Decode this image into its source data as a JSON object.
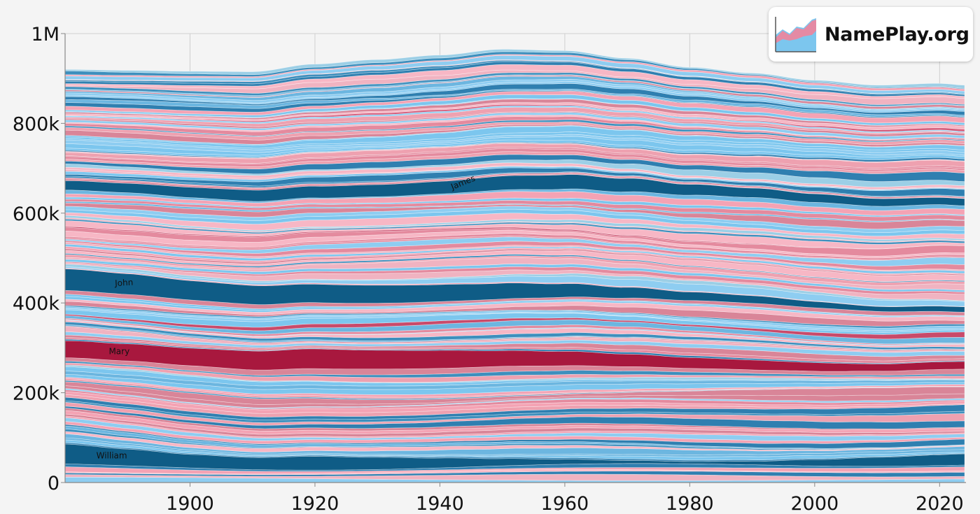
{
  "brand": {
    "name": "NamePlay.org",
    "logo_icon": "area-chart-logo-icon"
  },
  "colors": {
    "background": "#f4f4f4",
    "boy_palette": [
      "#7cc6ee",
      "#8ecdf1",
      "#9ccfe6",
      "#6cb6e0",
      "#3d8fbd",
      "#2f7fb0"
    ],
    "girl_palette": [
      "#f4a3b4",
      "#f0b3c1",
      "#eea1b0",
      "#f7b7c5",
      "#e48a9e",
      "#d98598"
    ],
    "highlight_boy": "#0f5c86",
    "highlight_girl": "#a8183e",
    "highlight_girl_mid": "#c94a6a"
  },
  "chart_data": {
    "type": "area",
    "subtype": "stacked streamgraph",
    "title": "",
    "xlabel": "",
    "ylabel": "",
    "xlim": [
      1880,
      2024
    ],
    "ylim": [
      0,
      1000000
    ],
    "x_ticks": [
      1900,
      1920,
      1940,
      1960,
      1980,
      2000,
      2020
    ],
    "x_tick_labels": [
      "1900",
      "1920",
      "1940",
      "1960",
      "1980",
      "2000",
      "2020"
    ],
    "y_ticks": [
      0,
      200000,
      400000,
      600000,
      800000,
      1000000
    ],
    "y_tick_labels": [
      "0",
      "200k",
      "400k",
      "600k",
      "800k",
      "1M"
    ],
    "grid": true,
    "years": [
      1880,
      1890,
      1900,
      1910,
      1920,
      1930,
      1940,
      1950,
      1960,
      1970,
      1980,
      1990,
      2000,
      2010,
      2020,
      2024
    ],
    "total": [
      920000,
      918000,
      916000,
      915000,
      932000,
      942000,
      952000,
      965000,
      962000,
      945000,
      925000,
      912000,
      896000,
      885000,
      889000,
      885000
    ],
    "series": [
      {
        "name": "William",
        "values": [
          44000,
          37000,
          30000,
          27000,
          31000,
          27000,
          22000,
          16000,
          11000,
          7000,
          5000,
          8000,
          14000,
          20000,
          24000,
          25000
        ]
      },
      {
        "name": "Mary",
        "values": [
          38000,
          38000,
          39000,
          42000,
          44000,
          42000,
          40000,
          35000,
          32000,
          28000,
          24000,
          22000,
          19000,
          16000,
          17000,
          17000
        ]
      },
      {
        "name": "John",
        "values": [
          48000,
          46000,
          43000,
          42000,
          41000,
          40000,
          38000,
          35000,
          30000,
          24000,
          19000,
          17000,
          14000,
          11000,
          12000,
          12000
        ]
      },
      {
        "name": "James",
        "values": [
          21000,
          21000,
          23000,
          25000,
          26000,
          27000,
          28000,
          31000,
          32000,
          30000,
          24000,
          21000,
          19000,
          17000,
          16000,
          16000
        ]
      }
    ],
    "labeled_streams": [
      {
        "name": "William",
        "year": 1885,
        "rotate": 0
      },
      {
        "name": "Mary",
        "year": 1887,
        "rotate": 0
      },
      {
        "name": "John",
        "year": 1888,
        "rotate": -3
      },
      {
        "name": "James",
        "year": 1942,
        "rotate": -22
      }
    ]
  }
}
